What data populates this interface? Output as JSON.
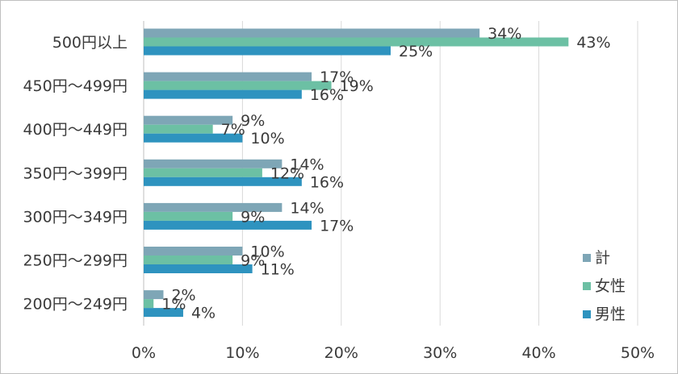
{
  "chart_data": {
    "type": "bar",
    "orientation": "horizontal",
    "categories": [
      "500円以上",
      "450円～499円",
      "400円～449円",
      "350円～399円",
      "300円～349円",
      "250円～299円",
      "200円～249円"
    ],
    "series": [
      {
        "name": "計",
        "color": "#7ea6b6",
        "values": [
          34,
          17,
          9,
          14,
          14,
          10,
          2
        ],
        "labels": [
          "34%",
          "17%",
          "9%",
          "14%",
          "14%",
          "10%",
          "2%"
        ]
      },
      {
        "name": "女性",
        "color": "#6cc0a4",
        "values": [
          43,
          19,
          7,
          12,
          9,
          9,
          1
        ],
        "labels": [
          "43%",
          "19%",
          "7%",
          "12%",
          "9%",
          "9%",
          "1%"
        ]
      },
      {
        "name": "男性",
        "color": "#2e93bf",
        "values": [
          25,
          16,
          10,
          16,
          17,
          11,
          4
        ],
        "labels": [
          "25%",
          "16%",
          "10%",
          "16%",
          "17%",
          "11%",
          "4%"
        ]
      }
    ],
    "xlim": [
      0,
      50
    ],
    "xticks": [
      "0%",
      "10%",
      "20%",
      "30%",
      "40%",
      "50%"
    ],
    "grid": true,
    "legend_position": "right"
  }
}
